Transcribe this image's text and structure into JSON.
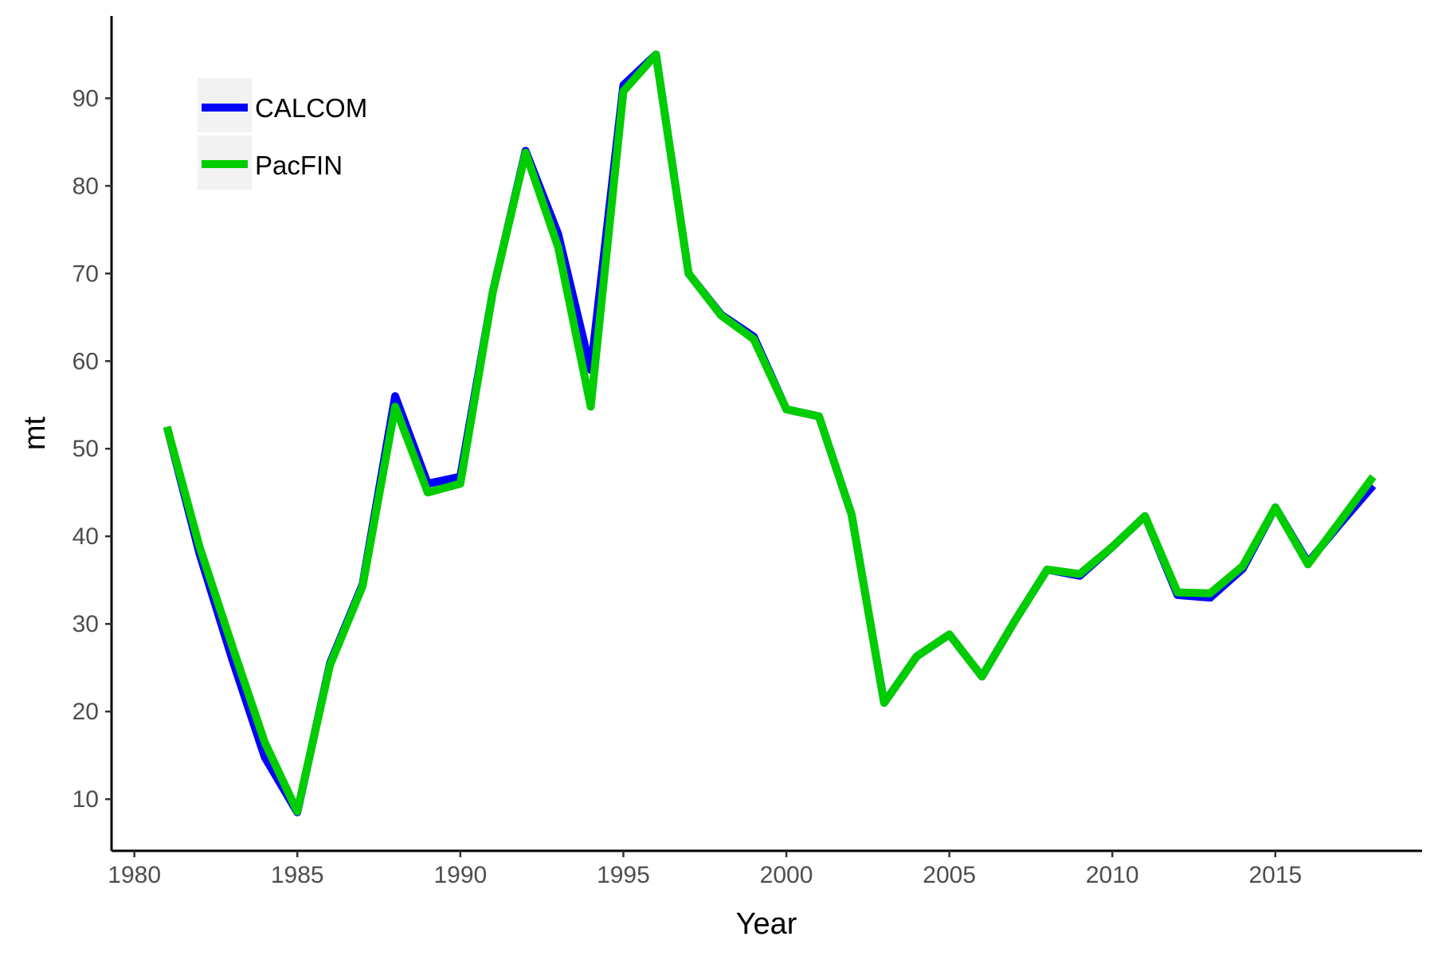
{
  "chart_data": {
    "type": "line",
    "title": "",
    "xlabel": "Year",
    "ylabel": "mt",
    "xlim": [
      1979.3,
      2019.5
    ],
    "ylim": [
      4.1,
      99.4
    ],
    "x_ticks": [
      1980,
      1985,
      1990,
      1995,
      2000,
      2005,
      2010,
      2015
    ],
    "y_ticks": [
      10,
      20,
      30,
      40,
      50,
      60,
      70,
      80,
      90
    ],
    "grid": false,
    "legend_position": "top-left",
    "x": [
      1981,
      1982,
      1983,
      1984,
      1985,
      1986,
      1987,
      1988,
      1989,
      1990,
      1991,
      1992,
      1993,
      1994,
      1995,
      1996,
      1997,
      1998,
      1999,
      2000,
      2001,
      2002,
      2003,
      2004,
      2005,
      2006,
      2007,
      2008,
      2009,
      2010,
      2011,
      2012,
      2013,
      2014,
      2015,
      2016,
      2017,
      2018
    ],
    "series": [
      {
        "name": "CALCOM",
        "color": "#0000ff",
        "values": [
          52.5,
          38,
          26,
          14.8,
          8.5,
          25.5,
          34.5,
          56,
          46,
          46.8,
          68,
          84,
          74.5,
          59,
          91.5,
          95,
          70,
          65.3,
          62.8,
          54.5,
          53.7,
          42.5,
          21,
          26.3,
          28.8,
          24,
          30.3,
          36.2,
          35.5,
          38.8,
          42.3,
          33.3,
          33,
          36.3,
          43.3,
          37,
          41.5,
          45.8
        ]
      },
      {
        "name": "PacFIN",
        "color": "#00cd00",
        "values": [
          52.5,
          38.8,
          27.5,
          16.5,
          8.6,
          25.3,
          34.3,
          54.8,
          45,
          46,
          68,
          83.8,
          73,
          54.8,
          90.8,
          95,
          70,
          65.2,
          62.5,
          54.5,
          53.7,
          42.5,
          21,
          26.3,
          28.8,
          24,
          30.3,
          36.2,
          35.7,
          38.8,
          42.3,
          33.6,
          33.5,
          36.6,
          43.3,
          36.8,
          41.8,
          46.8
        ]
      }
    ]
  }
}
